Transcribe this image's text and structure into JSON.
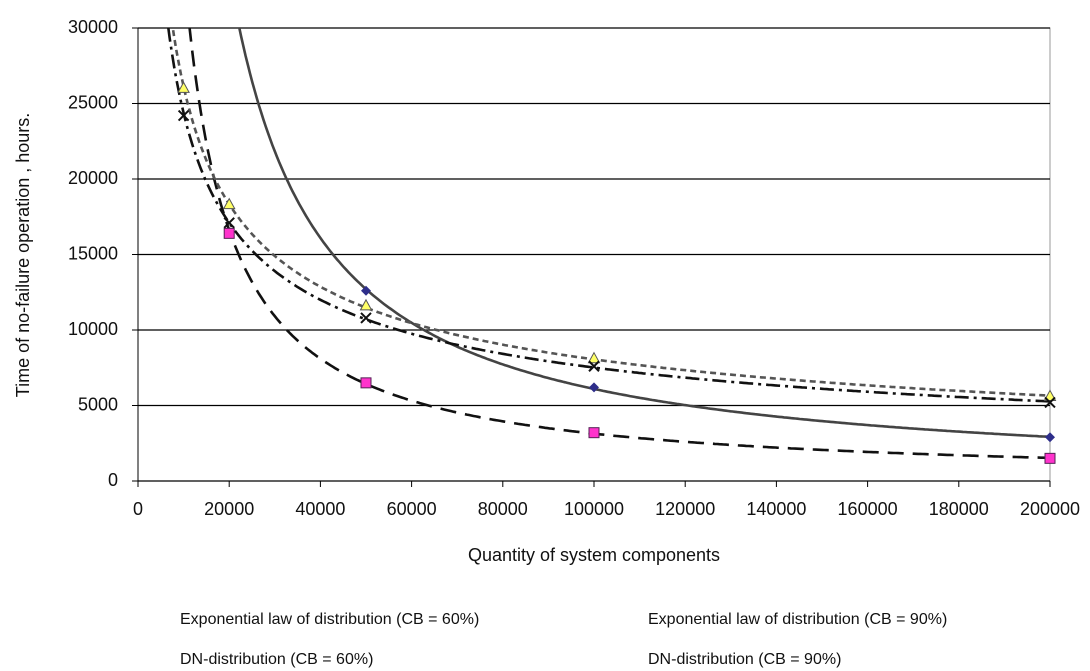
{
  "chart_data": {
    "type": "scatter",
    "x_label": "Quantity of system components",
    "y_label": "Time of no-failure operation , hours.",
    "xlim": [
      0,
      200000
    ],
    "xticks": [
      0,
      20000,
      40000,
      60000,
      80000,
      100000,
      120000,
      140000,
      160000,
      180000,
      200000
    ],
    "ylim": [
      0,
      30000
    ],
    "yticks": [
      0,
      5000,
      10000,
      15000,
      20000,
      25000,
      30000
    ],
    "grid": true,
    "trendline": "power",
    "series": [
      {
        "name": "Exponential law of distribution  (CB = 60%)",
        "color": "#2e2e8a",
        "line_color": "#444444",
        "linestyle": "solid",
        "marker": "diamond",
        "x": [
          50000,
          100000,
          200000
        ],
        "values": [
          12600,
          6200,
          2900
        ]
      },
      {
        "name": "Exponential law of distribution  (CB = 90%)",
        "color": "#ff33cc",
        "line_color": "#111111",
        "linestyle": "long-dash",
        "marker": "square",
        "x": [
          20000,
          50000,
          100000,
          200000
        ],
        "values": [
          16400,
          6500,
          3200,
          1500
        ]
      },
      {
        "name": "DN-distribution (CB = 60%)",
        "color": "#ffff66",
        "line_color": "#555555",
        "linestyle": "short-dash",
        "marker": "triangle",
        "x": [
          10000,
          20000,
          50000,
          100000,
          200000
        ],
        "values": [
          26000,
          18300,
          11600,
          8100,
          5600
        ]
      },
      {
        "name": "DN-distribution (CB = 90%)",
        "color": "#111111",
        "line_color": "#111111",
        "linestyle": "dash-dot",
        "marker": "cross",
        "x": [
          10000,
          20000,
          50000,
          100000,
          200000
        ],
        "values": [
          24200,
          17100,
          10800,
          7600,
          5200
        ]
      }
    ]
  }
}
